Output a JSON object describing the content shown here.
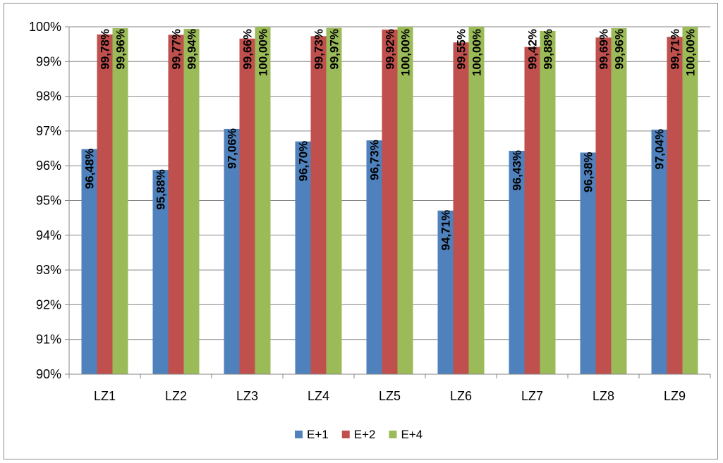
{
  "chart_data": {
    "type": "bar",
    "categories": [
      "LZ1",
      "LZ2",
      "LZ3",
      "LZ4",
      "LZ5",
      "LZ6",
      "LZ7",
      "LZ8",
      "LZ9"
    ],
    "series": [
      {
        "name": "E+1",
        "color": "#4F81BD",
        "values": [
          96.48,
          95.88,
          97.06,
          96.7,
          96.73,
          94.71,
          96.43,
          96.38,
          97.04
        ],
        "labels": [
          "96,48%",
          "95,88%",
          "97,06%",
          "96,70%",
          "96,73%",
          "94,71%",
          "96,43%",
          "96,38%",
          "97,04%"
        ]
      },
      {
        "name": "E+2",
        "color": "#C0504D",
        "values": [
          99.78,
          99.77,
          99.66,
          99.73,
          99.92,
          99.55,
          99.42,
          99.69,
          99.71
        ],
        "labels": [
          "99,78%",
          "99,77%",
          "99,66%",
          "99,73%",
          "99,92%",
          "99,55%",
          "99,42%",
          "99,69%",
          "99,71%"
        ]
      },
      {
        "name": "E+4",
        "color": "#9BBB59",
        "values": [
          99.96,
          99.94,
          100.0,
          99.97,
          100.0,
          100.0,
          99.88,
          99.96,
          100.0
        ],
        "labels": [
          "99,96%",
          "99,94%",
          "100,00%",
          "99,97%",
          "100,00%",
          "100,00%",
          "99,88%",
          "99,96%",
          "100,00%"
        ]
      }
    ],
    "ylim": [
      90,
      100
    ],
    "yticks": [
      90,
      91,
      92,
      93,
      94,
      95,
      96,
      97,
      98,
      99,
      100
    ],
    "ytick_labels": [
      "90%",
      "91%",
      "92%",
      "93%",
      "94%",
      "95%",
      "96%",
      "97%",
      "98%",
      "99%",
      "100%"
    ],
    "grid": true,
    "legend_position": "bottom"
  }
}
